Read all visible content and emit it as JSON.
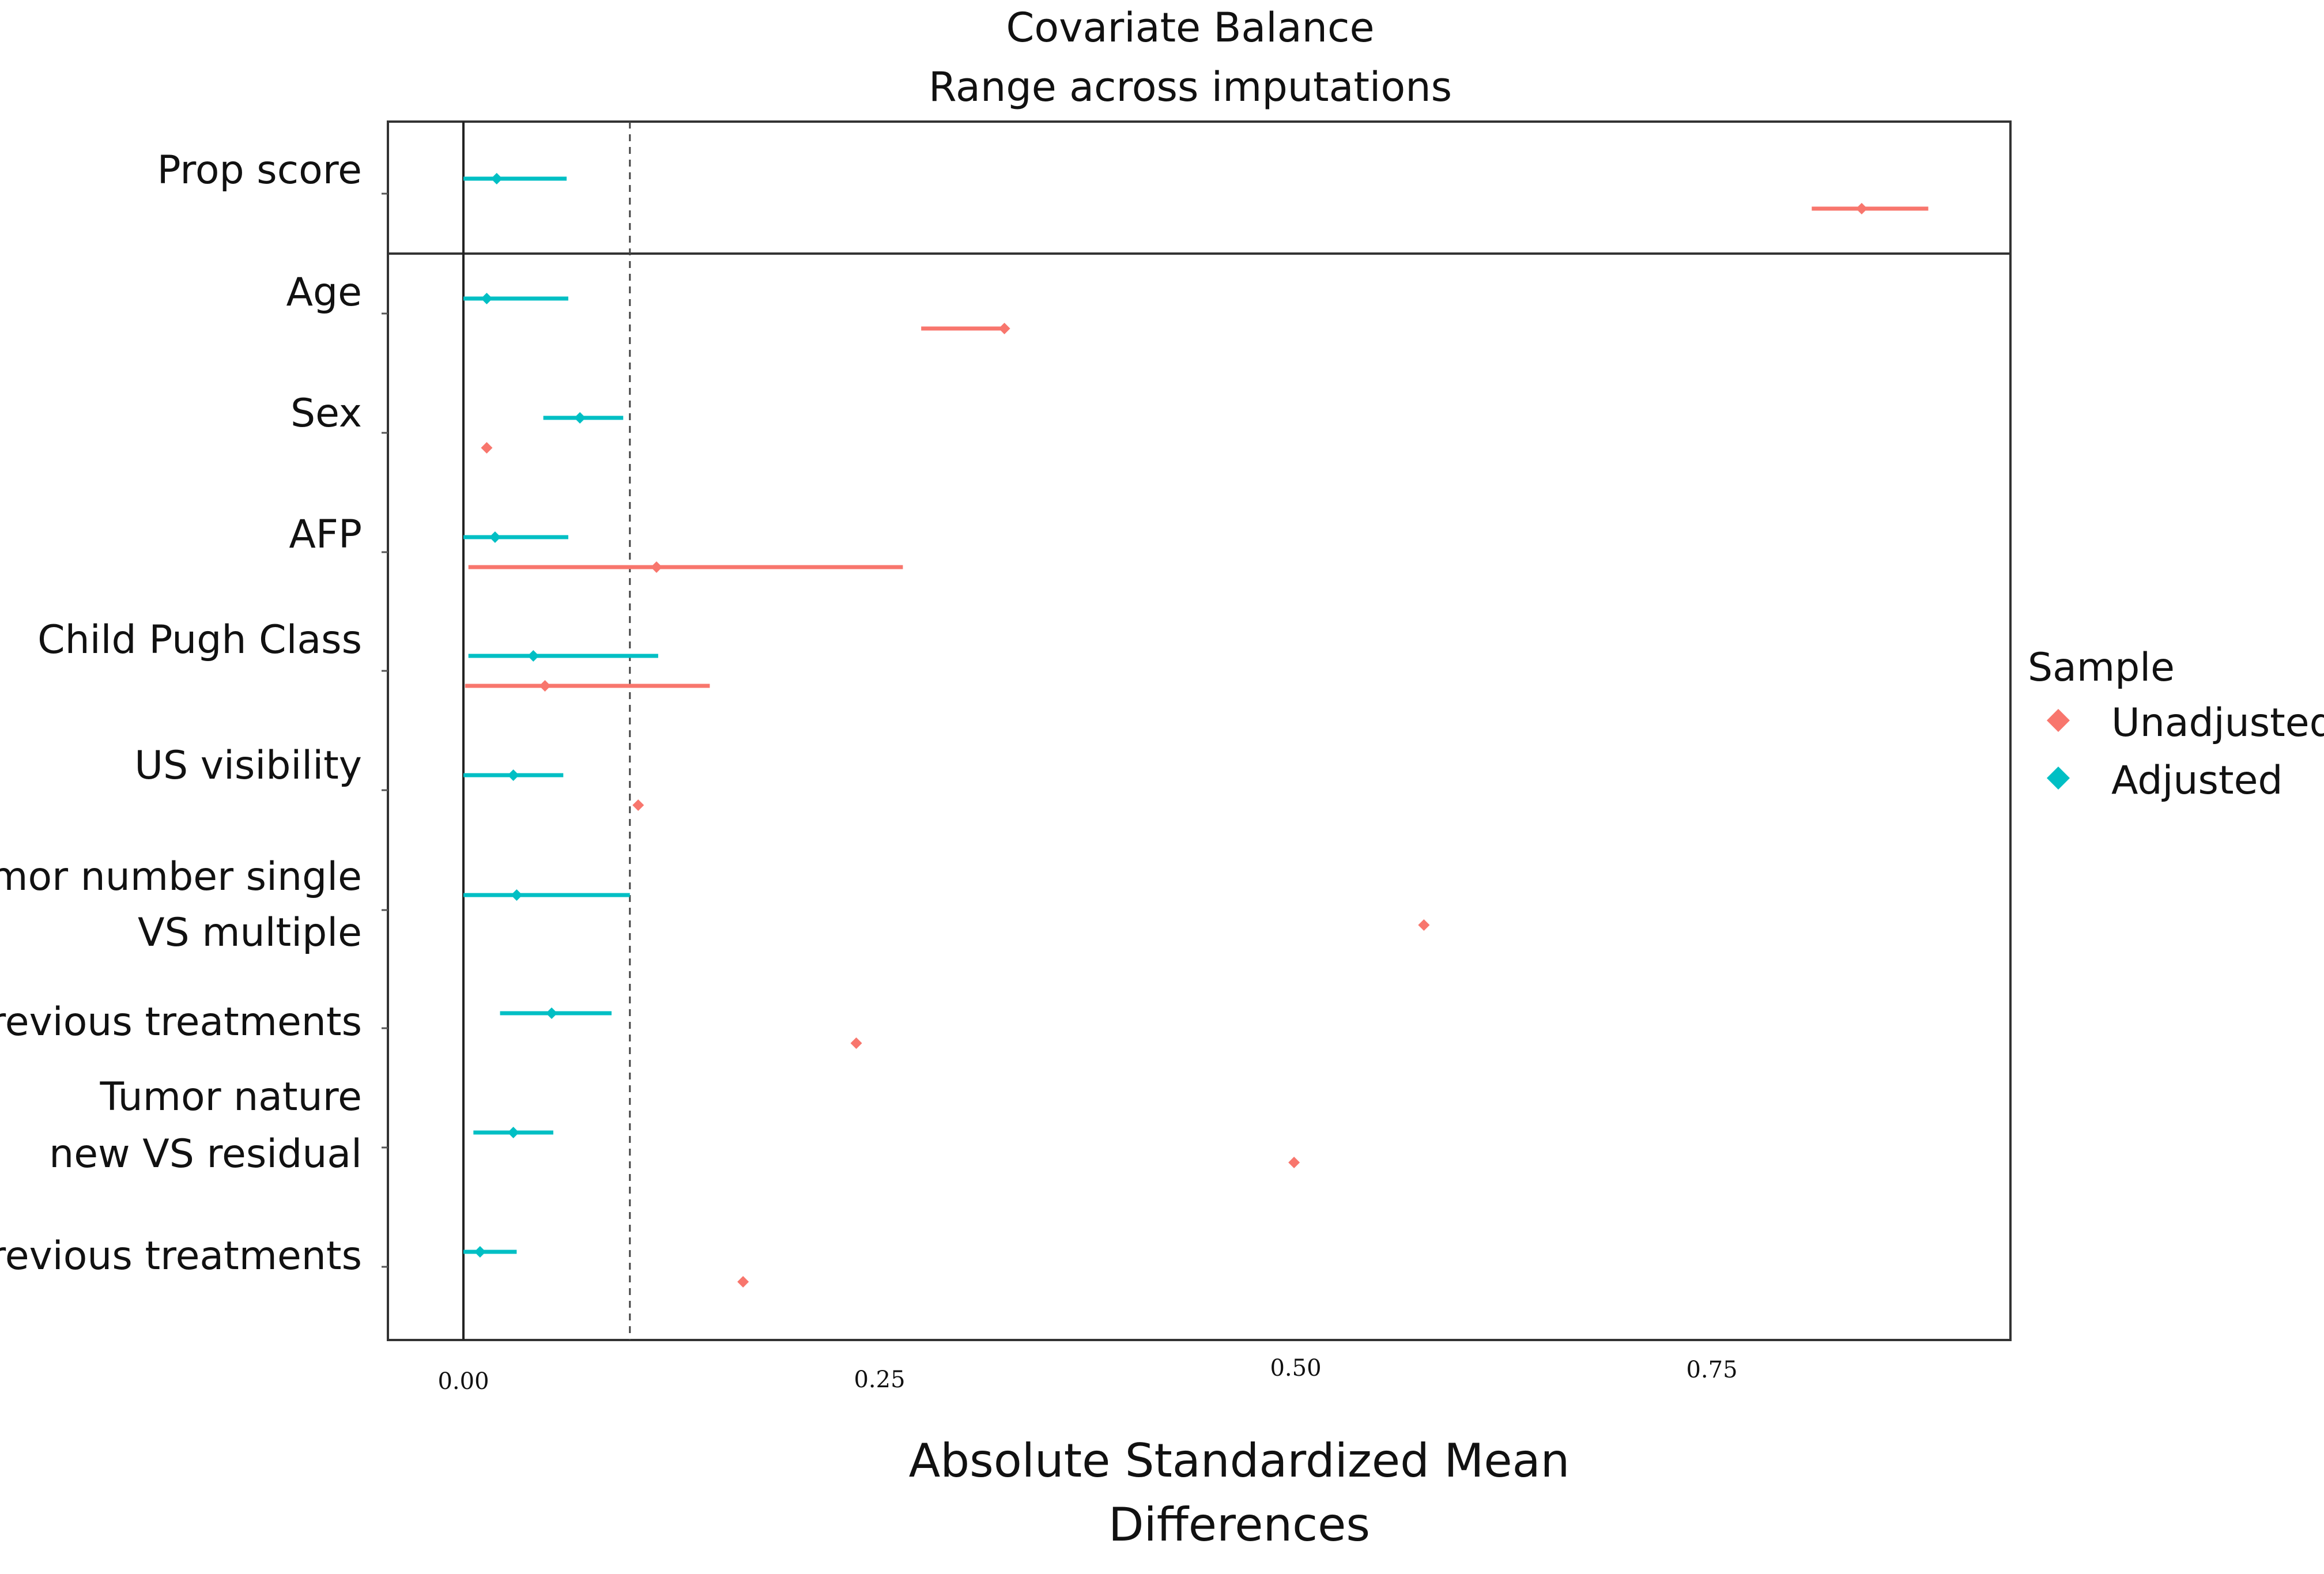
{
  "chart_data": {
    "type": "dot-range",
    "title": "Covariate Balance",
    "subtitle": "Range across imputations",
    "xlabel_line1": "Absolute Standardized Mean",
    "xlabel_line2": "Differences",
    "xlim": [
      -0.045,
      0.93
    ],
    "xticks": [
      {
        "value": 0.0,
        "label": "0.00"
      },
      {
        "value": 0.25,
        "label": "0.25"
      },
      {
        "value": 0.5,
        "label": "0.50"
      },
      {
        "value": 0.75,
        "label": "0.75"
      }
    ],
    "threshold": 0.1,
    "legend": {
      "title": "Sample",
      "placement": "right",
      "items": [
        {
          "label": "Unadjusted",
          "color": "#F8766D"
        },
        {
          "label": "Adjusted",
          "color": "#00BFC4"
        }
      ]
    },
    "covariates": [
      {
        "label": [
          "Prop score"
        ],
        "group": "prop",
        "adjusted": {
          "min": 0.0,
          "point": 0.02,
          "max": 0.062
        },
        "unadjusted": {
          "min": 0.81,
          "point": 0.84,
          "max": 0.88
        }
      },
      {
        "label": [
          "Age"
        ],
        "group": "main",
        "adjusted": {
          "min": 0.0,
          "point": 0.014,
          "max": 0.063
        },
        "unadjusted": {
          "min": 0.275,
          "point": 0.325,
          "max": 0.325
        }
      },
      {
        "label": [
          "Sex"
        ],
        "group": "main",
        "adjusted": {
          "min": 0.048,
          "point": 0.07,
          "max": 0.096
        },
        "unadjusted": {
          "min": 0.014,
          "point": 0.014,
          "max": 0.014
        }
      },
      {
        "label": [
          "AFP"
        ],
        "group": "main",
        "adjusted": {
          "min": 0.0,
          "point": 0.019,
          "max": 0.063
        },
        "unadjusted": {
          "min": 0.003,
          "point": 0.116,
          "max": 0.264
        }
      },
      {
        "label": [
          "Child Pugh Class"
        ],
        "group": "main",
        "adjusted": {
          "min": 0.003,
          "point": 0.042,
          "max": 0.117
        },
        "unadjusted": {
          "min": 0.001,
          "point": 0.049,
          "max": 0.148
        }
      },
      {
        "label": [
          "US visibility"
        ],
        "group": "main",
        "adjusted": {
          "min": 0.0,
          "point": 0.03,
          "max": 0.06
        },
        "unadjusted": {
          "min": 0.105,
          "point": 0.105,
          "max": 0.105
        }
      },
      {
        "label": [
          "Tumor number single",
          "VS multiple"
        ],
        "group": "main",
        "adjusted": {
          "min": 0.0,
          "point": 0.032,
          "max": 0.1
        },
        "unadjusted": {
          "min": 0.577,
          "point": 0.577,
          "max": 0.577
        }
      },
      {
        "label": [
          "Previous treatments"
        ],
        "group": "main",
        "adjusted": {
          "min": 0.022,
          "point": 0.053,
          "max": 0.089
        },
        "unadjusted": {
          "min": 0.236,
          "point": 0.236,
          "max": 0.236
        }
      },
      {
        "label": [
          "Tumor nature",
          "new VS residual"
        ],
        "group": "main",
        "adjusted": {
          "min": 0.006,
          "point": 0.03,
          "max": 0.054
        },
        "unadjusted": {
          "min": 0.499,
          "point": 0.499,
          "max": 0.499
        }
      },
      {
        "label": [
          "Previous treatments"
        ],
        "group": "main",
        "adjusted": {
          "min": 0.0,
          "point": 0.01,
          "max": 0.032
        },
        "unadjusted": {
          "min": 0.168,
          "point": 0.168,
          "max": 0.168
        }
      }
    ]
  }
}
